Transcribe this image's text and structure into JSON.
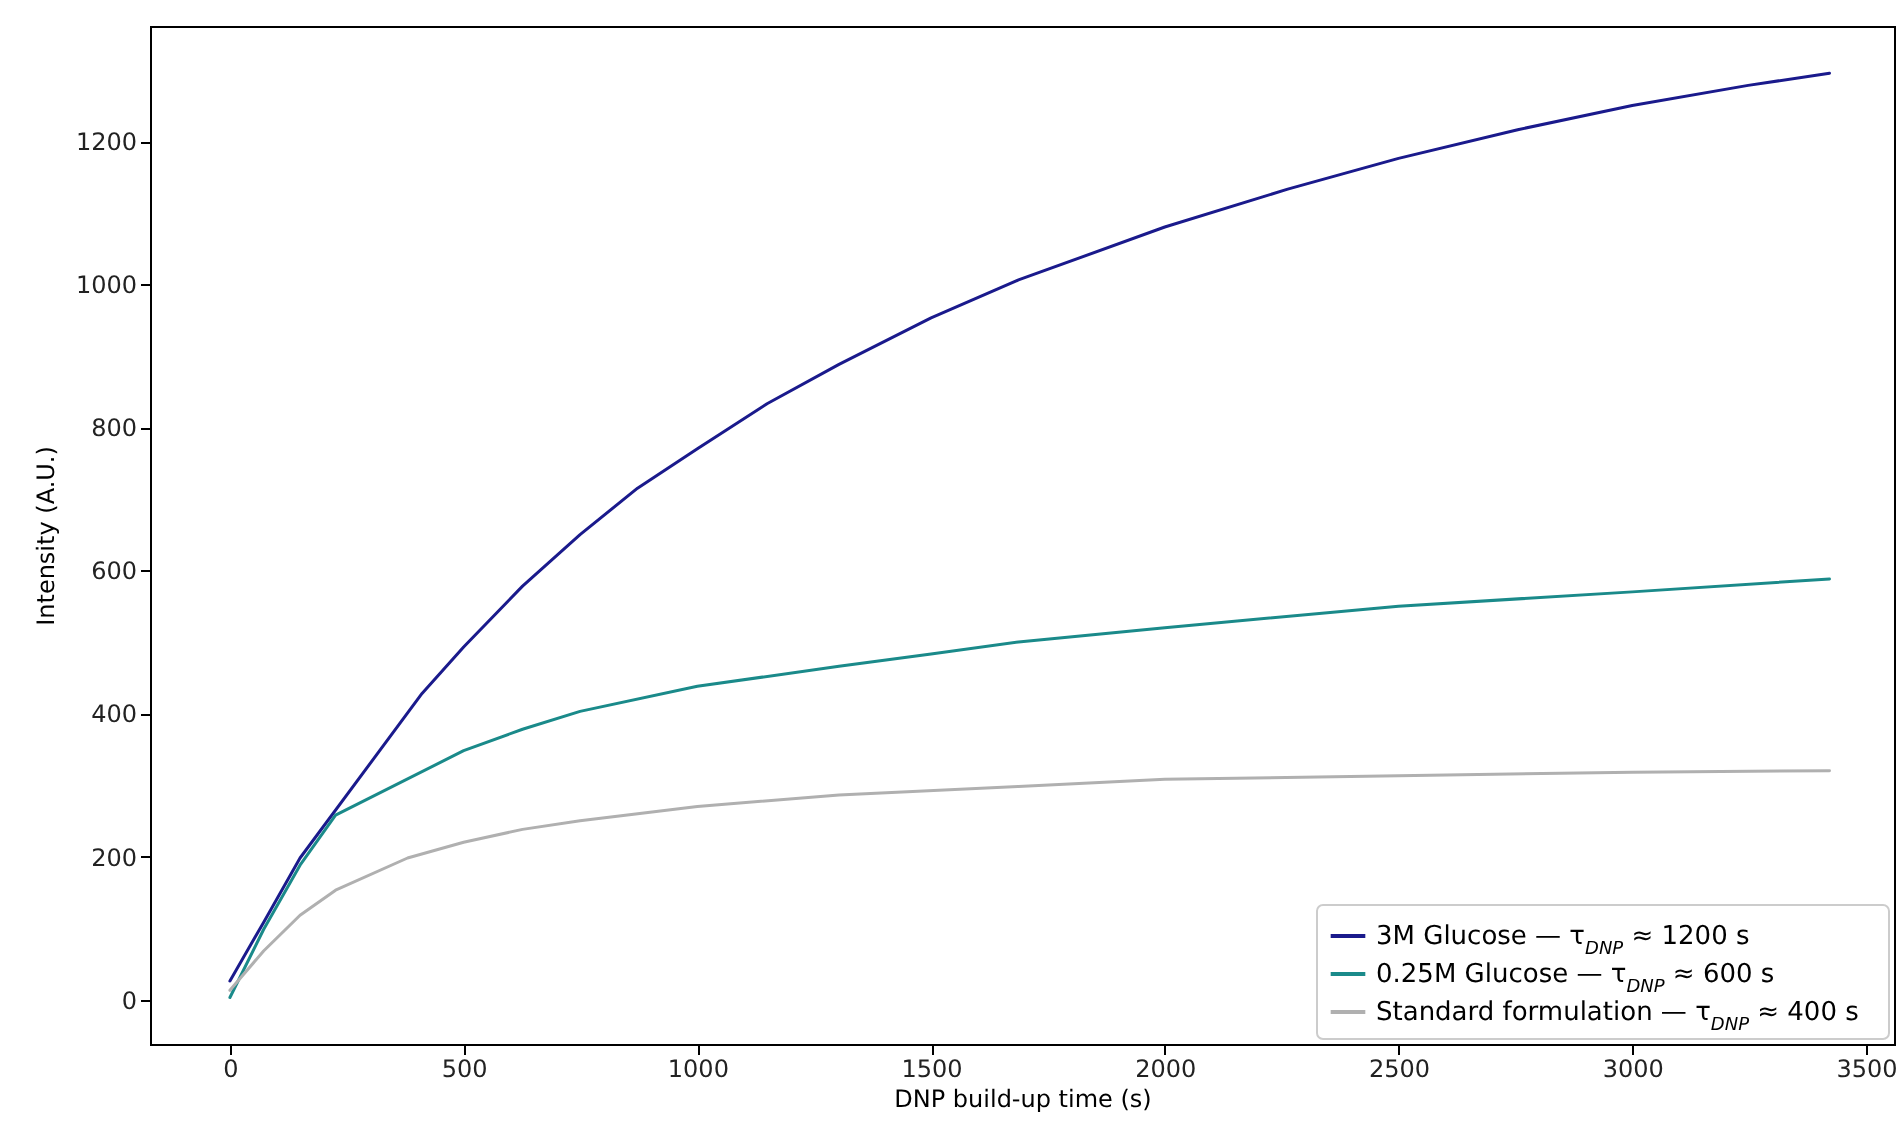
{
  "chart_data": {
    "type": "line",
    "xlabel": "DNP build-up time (s)",
    "ylabel": "Intensity (A.U.)",
    "xlim": [
      -171,
      3560
    ],
    "ylim": [
      -62,
      1361
    ],
    "xticks": [
      0,
      500,
      1000,
      1500,
      2000,
      2500,
      3000,
      3500
    ],
    "yticks": [
      0,
      200,
      400,
      600,
      800,
      1000,
      1200
    ],
    "grid": false,
    "legend": "bottom right",
    "marker": "none",
    "line_style": "solid",
    "series": [
      {
        "name": "3M Glucose — τ$_{DNP}$ ≈ 1200 s",
        "color": "#1a1a8c",
        "x": [
          0,
          72,
          150,
          411,
          500,
          626,
          749,
          872,
          1000,
          1149,
          1303,
          1500,
          1687,
          2000,
          2263,
          2500,
          2755,
          3000,
          3248,
          3422
        ],
        "values": [
          26,
          108,
          198,
          428,
          493,
          578,
          650,
          715,
          770,
          833,
          888,
          953,
          1006,
          1080,
          1133,
          1176,
          1216,
          1250,
          1278,
          1295
        ]
      },
      {
        "name": "0.25M Glucose — τ$_{DNP}$ ≈ 600 s",
        "color": "#1a8a8a",
        "x": [
          0,
          72,
          150,
          226,
          500,
          626,
          749,
          1000,
          1303,
          1500,
          1687,
          2000,
          2500,
          3000,
          3422
        ],
        "values": [
          3,
          98,
          188,
          258,
          348,
          378,
          403,
          438,
          466,
          483,
          500,
          520,
          550,
          570,
          588
        ]
      },
      {
        "name": "Standard formulation — τ$_{DNP}$ ≈ 400 s",
        "color": "#b0b0b0",
        "x": [
          0,
          72,
          150,
          226,
          380,
          500,
          626,
          749,
          1000,
          1303,
          1687,
          2000,
          2500,
          3000,
          3422
        ],
        "values": [
          13,
          68,
          118,
          153,
          198,
          220,
          238,
          250,
          270,
          286,
          298,
          308,
          313,
          318,
          320
        ]
      }
    ]
  }
}
